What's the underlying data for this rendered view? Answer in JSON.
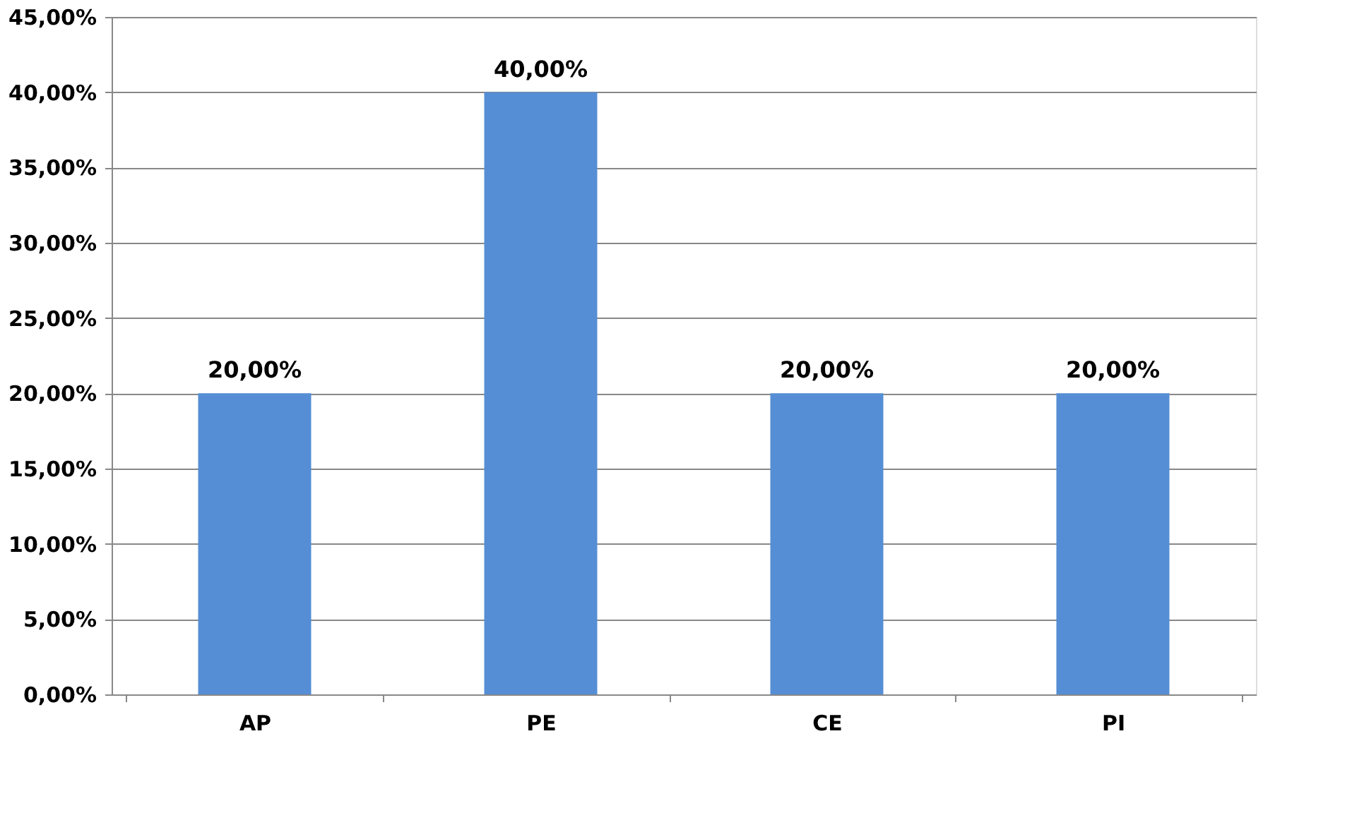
{
  "chart_data": {
    "type": "bar",
    "categories": [
      "AP",
      "PE",
      "CE",
      "PI"
    ],
    "values": [
      20,
      40,
      20,
      20
    ],
    "color": "#558ed5",
    "value_labels": [
      "20,00%",
      "40,00%",
      "20,00%",
      "20,00%"
    ],
    "ylim": [
      0,
      45
    ],
    "yticks": [
      {
        "value": 0,
        "label": "0,00%"
      },
      {
        "value": 5,
        "label": "5,00%"
      },
      {
        "value": 10,
        "label": "10,00%"
      },
      {
        "value": 15,
        "label": "15,00%"
      },
      {
        "value": 20,
        "label": "20,00%"
      },
      {
        "value": 25,
        "label": "25,00%"
      },
      {
        "value": 30,
        "label": "30,00%"
      },
      {
        "value": 35,
        "label": "35,00%"
      },
      {
        "value": 40,
        "label": "40,00%"
      },
      {
        "value": 45,
        "label": "45,00%"
      }
    ],
    "grid": "y"
  }
}
